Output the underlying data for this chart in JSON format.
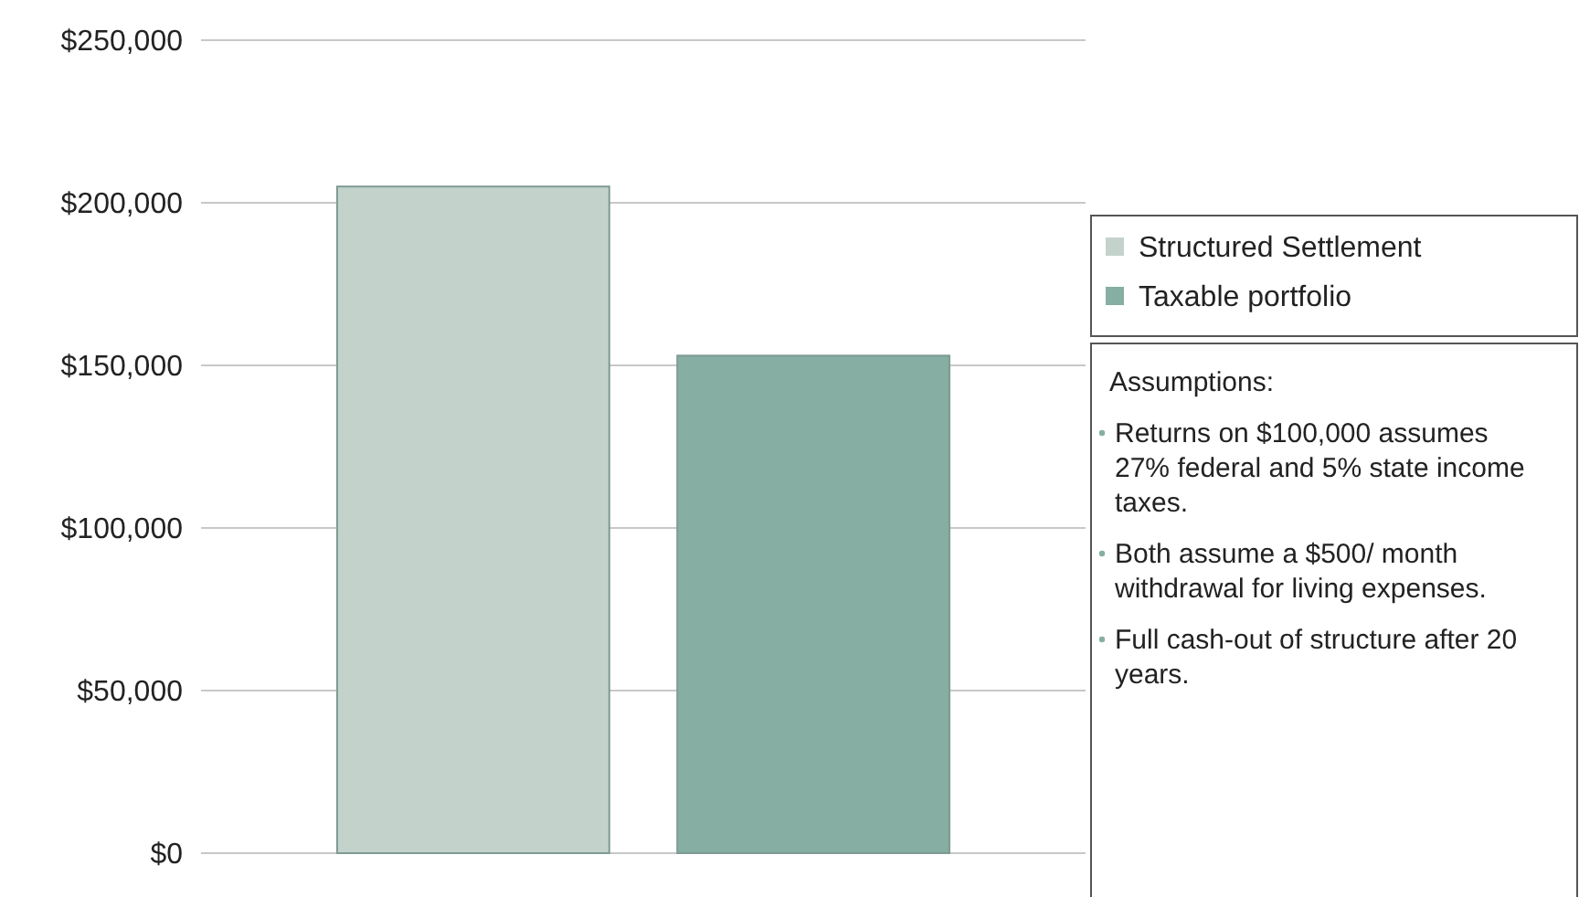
{
  "chart_data": {
    "type": "bar",
    "categories": [
      null
    ],
    "series": [
      {
        "name": "Structured Settlement",
        "color": "#c4d2cc",
        "values": [
          205000
        ]
      },
      {
        "name": "Taxable portfolio",
        "color": "#86aea3",
        "values": [
          153000
        ]
      }
    ],
    "ylim": [
      0,
      250000
    ],
    "yticks": [
      {
        "value": 0,
        "label": "$0"
      },
      {
        "value": 50000,
        "label": "$50,000"
      },
      {
        "value": 100000,
        "label": "$100,000"
      },
      {
        "value": 150000,
        "label": "$150,000"
      },
      {
        "value": 200000,
        "label": "$200,000"
      },
      {
        "value": 250000,
        "label": "$250,000"
      }
    ],
    "grid": "y",
    "legend": "right",
    "annotations": [
      "Assumptions:",
      "Returns on $100,000 assumes 27% federal and 5% state income taxes.",
      "Both assume a $500/ month withdrawal for living expenses.",
      "Full cash-out of structure after 20 years."
    ]
  }
}
